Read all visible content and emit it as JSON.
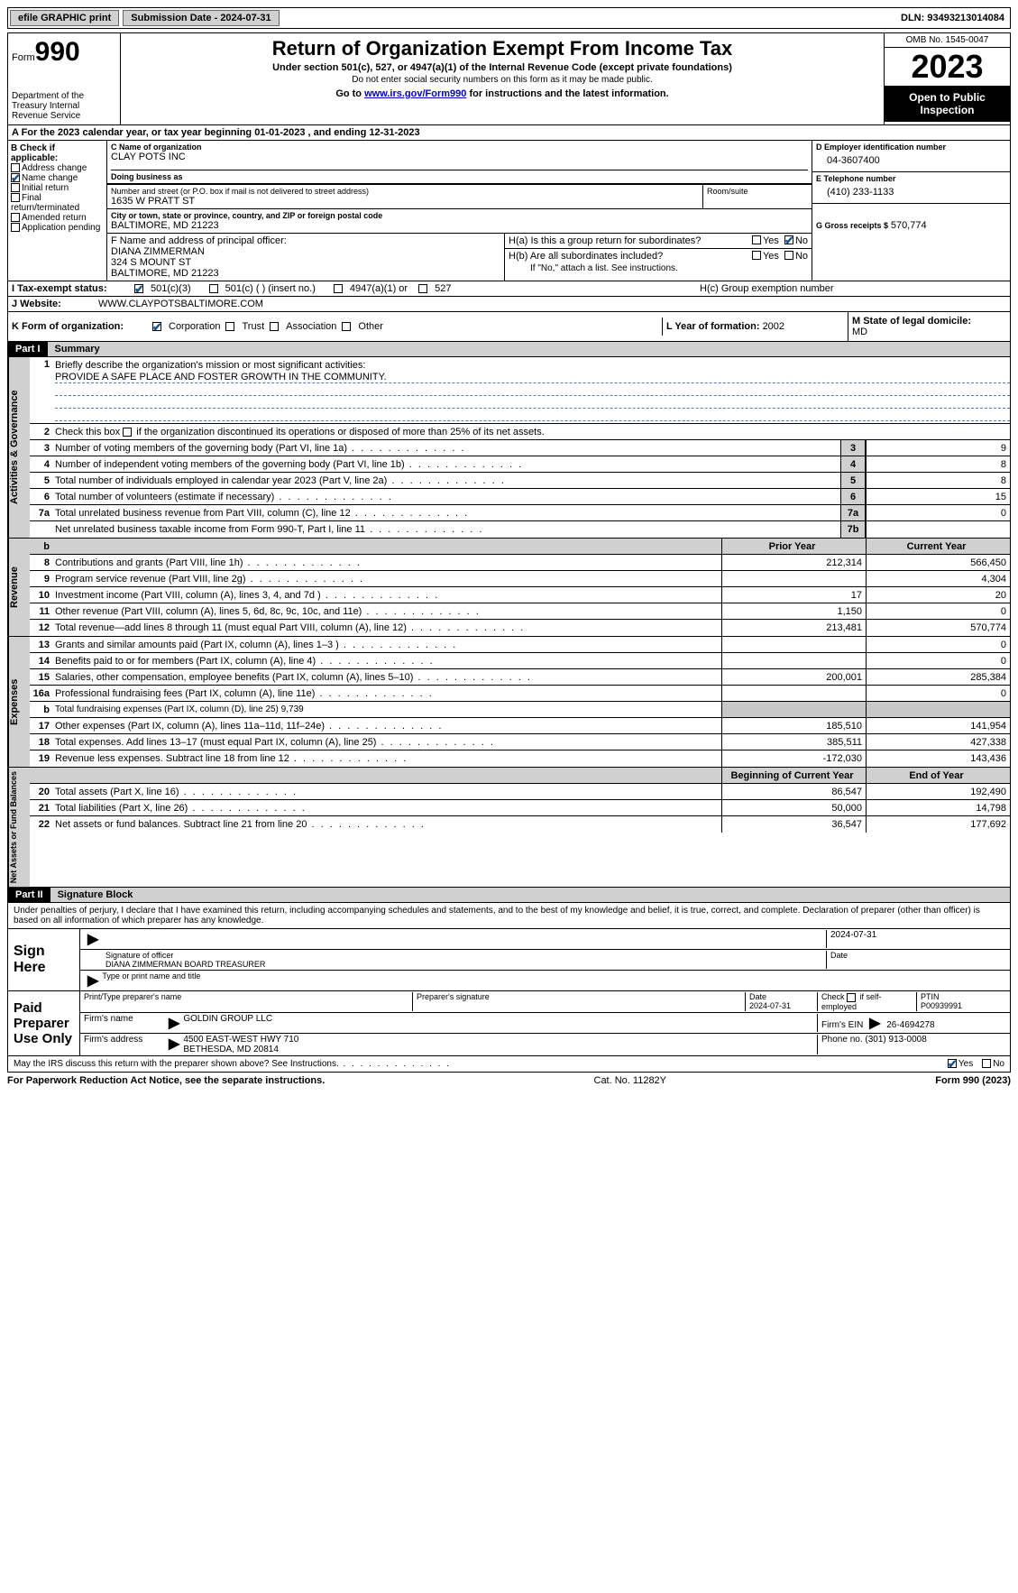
{
  "topbar": {
    "efile": "efile GRAPHIC print",
    "submission_label": "Submission Date - 2024-07-31",
    "dln_label": "DLN: 93493213014084"
  },
  "header": {
    "form_word": "Form",
    "form_number": "990",
    "dept": "Department of the Treasury Internal Revenue Service",
    "title": "Return of Organization Exempt From Income Tax",
    "sub1": "Under section 501(c), 527, or 4947(a)(1) of the Internal Revenue Code (except private foundations)",
    "sub2": "Do not enter social security numbers on this form as it may be made public.",
    "sub3_pre": "Go to ",
    "sub3_link": "www.irs.gov/Form990",
    "sub3_post": " for instructions and the latest information.",
    "omb": "OMB No. 1545-0047",
    "year": "2023",
    "open": "Open to Public Inspection"
  },
  "line_a": "A For the 2023 calendar year, or tax year beginning 01-01-2023   , and ending 12-31-2023",
  "box_b": {
    "title": "B Check if applicable:",
    "opts": [
      "Address change",
      "Name change",
      "Initial return",
      "Final return/terminated",
      "Amended return",
      "Application pending"
    ],
    "checked_idx": 1
  },
  "box_c": {
    "name_lbl": "C Name of organization",
    "name": "CLAY POTS INC",
    "dba_lbl": "Doing business as",
    "dba": "",
    "street_lbl": "Number and street (or P.O. box if mail is not delivered to street address)",
    "room_lbl": "Room/suite",
    "street": "1635 W PRATT ST",
    "city_lbl": "City or town, state or province, country, and ZIP or foreign postal code",
    "city": "BALTIMORE, MD  21223"
  },
  "box_d": {
    "lbl": "D Employer identification number",
    "val": "04-3607400"
  },
  "box_e": {
    "lbl": "E Telephone number",
    "val": "(410) 233-1133"
  },
  "box_g": {
    "lbl": "G Gross receipts $",
    "val": "570,774"
  },
  "box_f": {
    "lbl": "F  Name and address of principal officer:",
    "line1": "DIANA ZIMMERMAN",
    "line2": "324 S MOUNT ST",
    "line3": "BALTIMORE, MD  21223"
  },
  "box_h": {
    "a": "H(a)  Is this a group return for subordinates?",
    "b": "H(b)  Are all subordinates included?",
    "b_note": "If \"No,\" attach a list. See instructions.",
    "c": "H(c)  Group exemption number"
  },
  "yes": "Yes",
  "no": "No",
  "row_i": {
    "lbl": "I  Tax-exempt status:",
    "o1": "501(c)(3)",
    "o2": "501(c) (  ) (insert no.)",
    "o3": "4947(a)(1) or",
    "o4": "527"
  },
  "row_j": {
    "lbl": "J  Website:",
    "val": "WWW.CLAYPOTSBALTIMORE.COM"
  },
  "row_k": {
    "lbl": "K Form of organization:",
    "o1": "Corporation",
    "o2": "Trust",
    "o3": "Association",
    "o4": "Other"
  },
  "row_l": {
    "lbl": "L Year of formation: ",
    "val": "2002"
  },
  "row_m": {
    "lbl": "M State of legal domicile:",
    "val": "MD"
  },
  "part1": {
    "hdr": "Part I",
    "title": "Summary"
  },
  "part2": {
    "hdr": "Part II",
    "title": "Signature Block"
  },
  "vtabs": {
    "gov": "Activities & Governance",
    "rev": "Revenue",
    "exp": "Expenses",
    "net": "Net Assets or Fund Balances"
  },
  "s1": {
    "n": "1",
    "t": "Briefly describe the organization's mission or most significant activities:",
    "mission": "PROVIDE A SAFE PLACE AND FOSTER GROWTH IN THE COMMUNITY."
  },
  "s2": {
    "n": "2",
    "t": "Check this box      if the organization discontinued its operations or disposed of more than 25% of its net assets."
  },
  "cols": {
    "b": "b",
    "prior": "Prior Year",
    "current": "Current Year",
    "begin": "Beginning of Current Year",
    "end": "End of Year"
  },
  "lines_gov": [
    {
      "n": "3",
      "t": "Number of voting members of the governing body (Part VI, line 1a)",
      "pill": "3",
      "v": "9"
    },
    {
      "n": "4",
      "t": "Number of independent voting members of the governing body (Part VI, line 1b)",
      "pill": "4",
      "v": "8"
    },
    {
      "n": "5",
      "t": "Total number of individuals employed in calendar year 2023 (Part V, line 2a)",
      "pill": "5",
      "v": "8"
    },
    {
      "n": "6",
      "t": "Total number of volunteers (estimate if necessary)",
      "pill": "6",
      "v": "15"
    },
    {
      "n": "7a",
      "t": "Total unrelated business revenue from Part VIII, column (C), line 12",
      "pill": "7a",
      "v": "0"
    },
    {
      "n": "",
      "t": "Net unrelated business taxable income from Form 990-T, Part I, line 11",
      "pill": "7b",
      "v": ""
    }
  ],
  "lines_rev": [
    {
      "n": "8",
      "t": "Contributions and grants (Part VIII, line 1h)",
      "p": "212,314",
      "c": "566,450"
    },
    {
      "n": "9",
      "t": "Program service revenue (Part VIII, line 2g)",
      "p": "",
      "c": "4,304"
    },
    {
      "n": "10",
      "t": "Investment income (Part VIII, column (A), lines 3, 4, and 7d )",
      "p": "17",
      "c": "20"
    },
    {
      "n": "11",
      "t": "Other revenue (Part VIII, column (A), lines 5, 6d, 8c, 9c, 10c, and 11e)",
      "p": "1,150",
      "c": "0"
    },
    {
      "n": "12",
      "t": "Total revenue—add lines 8 through 11 (must equal Part VIII, column (A), line 12)",
      "p": "213,481",
      "c": "570,774"
    }
  ],
  "lines_exp": [
    {
      "n": "13",
      "t": "Grants and similar amounts paid (Part IX, column (A), lines 1–3 )",
      "p": "",
      "c": "0"
    },
    {
      "n": "14",
      "t": "Benefits paid to or for members (Part IX, column (A), line 4)",
      "p": "",
      "c": "0"
    },
    {
      "n": "15",
      "t": "Salaries, other compensation, employee benefits (Part IX, column (A), lines 5–10)",
      "p": "200,001",
      "c": "285,384"
    },
    {
      "n": "16a",
      "t": "Professional fundraising fees (Part IX, column (A), line 11e)",
      "p": "",
      "c": "0"
    },
    {
      "n": "b",
      "t": "Total fundraising expenses (Part IX, column (D), line 25) 9,739",
      "shade": true
    },
    {
      "n": "17",
      "t": "Other expenses (Part IX, column (A), lines 11a–11d, 11f–24e)",
      "p": "185,510",
      "c": "141,954"
    },
    {
      "n": "18",
      "t": "Total expenses. Add lines 13–17 (must equal Part IX, column (A), line 25)",
      "p": "385,511",
      "c": "427,338"
    },
    {
      "n": "19",
      "t": "Revenue less expenses. Subtract line 18 from line 12",
      "p": "-172,030",
      "c": "143,436"
    }
  ],
  "lines_net": [
    {
      "n": "20",
      "t": "Total assets (Part X, line 16)",
      "p": "86,547",
      "c": "192,490"
    },
    {
      "n": "21",
      "t": "Total liabilities (Part X, line 26)",
      "p": "50,000",
      "c": "14,798"
    },
    {
      "n": "22",
      "t": "Net assets or fund balances. Subtract line 21 from line 20",
      "p": "36,547",
      "c": "177,692"
    }
  ],
  "sig": {
    "intro": "Under penalties of perjury, I declare that I have examined this return, including accompanying schedules and statements, and to the best of my knowledge and belief, it is true, correct, and complete. Declaration of preparer (other than officer) is based on all information of which preparer has any knowledge.",
    "sign_here": "Sign Here",
    "paid": "Paid Preparer Use Only",
    "sig_officer_lbl": "Signature of officer",
    "date_lbl": "Date",
    "date1": "2024-07-31",
    "officer": "DIANA ZIMMERMAN  BOARD TREASURER",
    "type_lbl": "Type or print name and title",
    "prep_name_lbl": "Print/Type preparer's name",
    "prep_sig_lbl": "Preparer's signature",
    "prep_date": "2024-07-31",
    "check_self": "Check      if self-employed",
    "ptin_lbl": "PTIN",
    "ptin": "P00939991",
    "firm_name_lbl": "Firm's name",
    "firm_name": "GOLDIN GROUP LLC",
    "firm_ein_lbl": "Firm's EIN",
    "firm_ein": "26-4694278",
    "firm_addr_lbl": "Firm's address",
    "firm_addr1": "4500 EAST-WEST HWY 710",
    "firm_addr2": "BETHESDA, MD  20814",
    "phone_lbl": "Phone no.",
    "phone": "(301) 913-0008",
    "discuss": "May the IRS discuss this return with the preparer shown above? See Instructions."
  },
  "footer": {
    "l": "For Paperwork Reduction Act Notice, see the separate instructions.",
    "m": "Cat. No. 11282Y",
    "r": "Form 990 (2023)"
  }
}
